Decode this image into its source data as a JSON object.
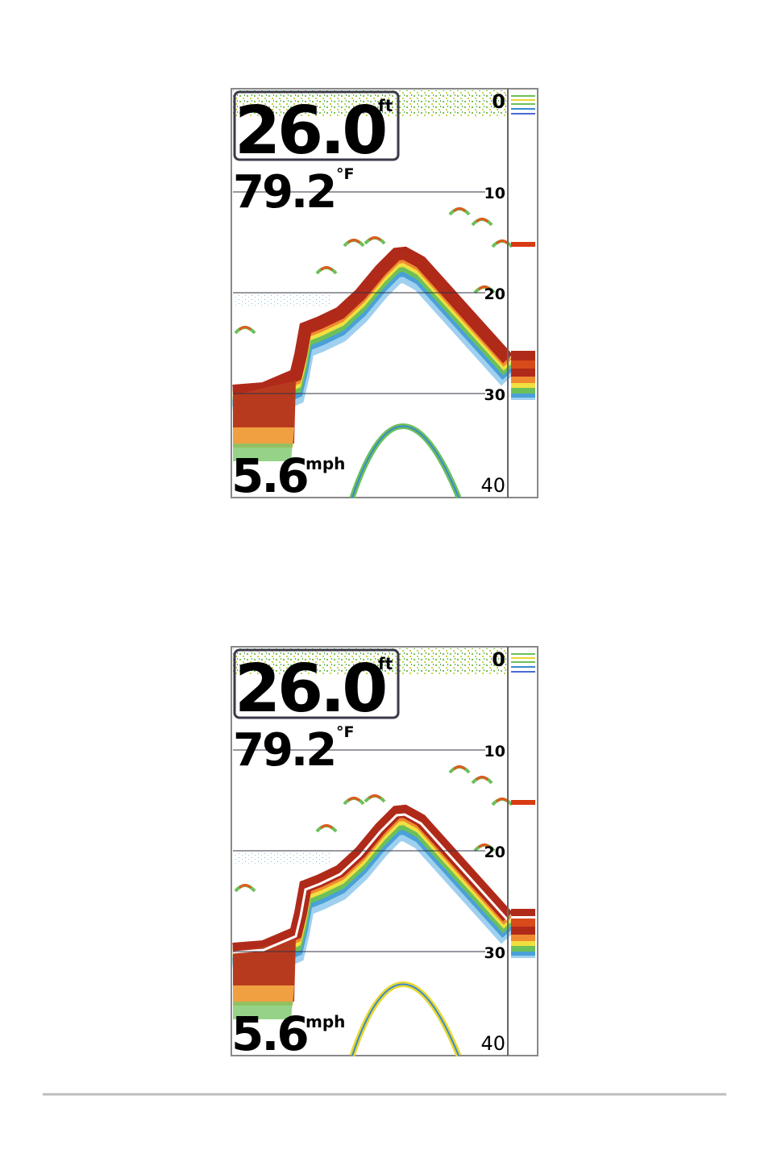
{
  "screens": [
    {
      "depth": "26.0",
      "depth_unit": "ft",
      "temperature": "79.2",
      "temperature_unit": "°F",
      "speed": "5.6",
      "speed_unit": "mph",
      "scale": [
        "0",
        "10",
        "20",
        "30",
        "40"
      ]
    },
    {
      "depth": "26.0",
      "depth_unit": "ft",
      "temperature": "79.2",
      "temperature_unit": "°F",
      "speed": "5.6",
      "speed_unit": "mph",
      "scale": [
        "0",
        "10",
        "20",
        "30",
        "40"
      ]
    }
  ]
}
